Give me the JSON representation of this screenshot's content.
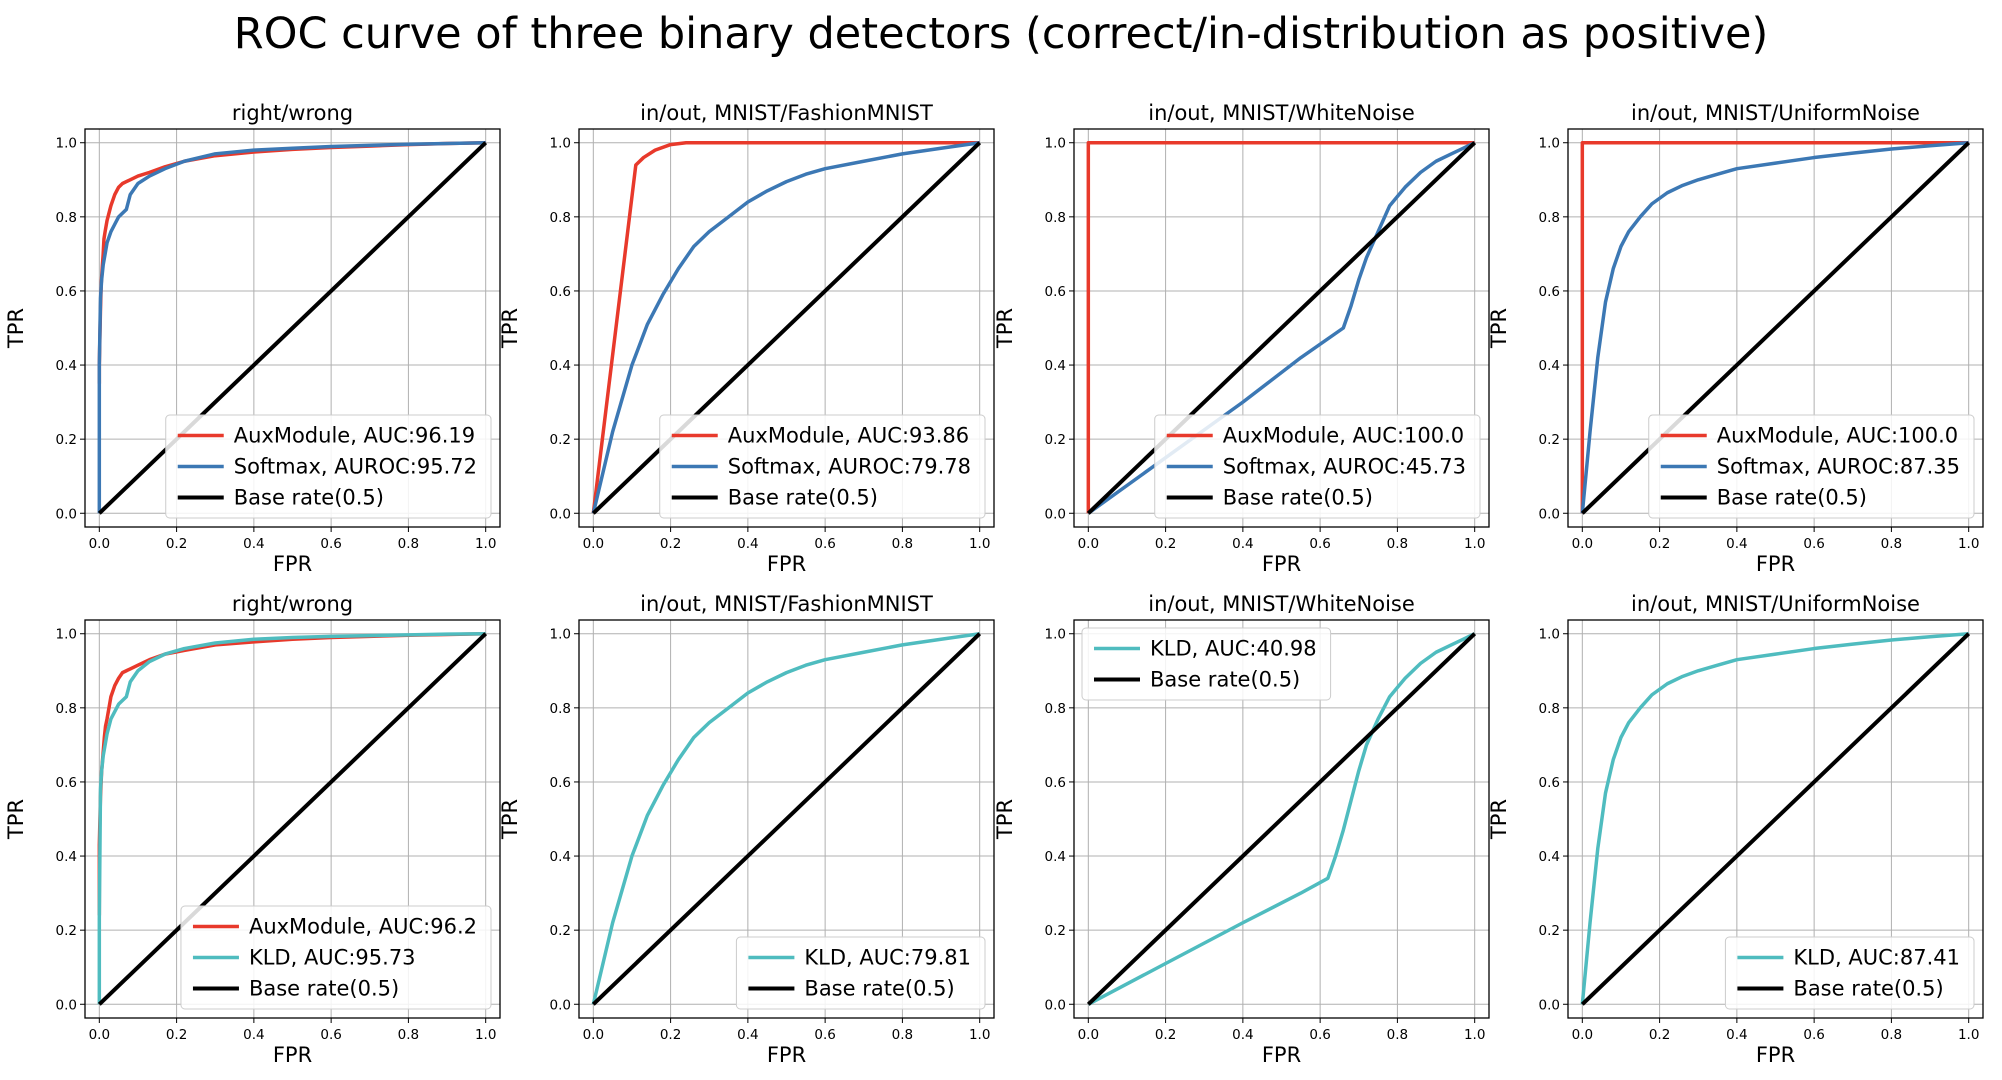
{
  "suptitle": "ROC curve of three binary detectors (correct/in-distribution as positive)",
  "colors": {
    "AuxModule": "#e8392b",
    "Softmax": "#3c78b4",
    "KLD": "#4fbcbf",
    "Base": "#000000",
    "grid": "#b0b0b0"
  },
  "chart_data": [
    {
      "type": "line",
      "title": "right/wrong",
      "xlabel": "FPR",
      "ylabel": "TPR",
      "xlim": [
        0,
        1
      ],
      "ylim": [
        0,
        1
      ],
      "grid": true,
      "legend": "bottom-right",
      "xticks": [
        "0.0",
        "0.2",
        "0.4",
        "0.6",
        "0.8",
        "1.0"
      ],
      "yticks": [
        "0.0",
        "0.2",
        "0.4",
        "0.6",
        "0.8",
        "1.0"
      ],
      "series": [
        {
          "name": "AuxModule, AUC:96.19",
          "color_key": "AuxModule",
          "x": [
            0,
            0,
            0.003,
            0.005,
            0.008,
            0.01,
            0.012,
            0.015,
            0.02,
            0.025,
            0.03,
            0.04,
            0.05,
            0.06,
            0.08,
            0.1,
            0.13,
            0.17,
            0.22,
            0.3,
            0.4,
            0.5,
            0.6,
            0.7,
            0.8,
            0.9,
            1.0
          ],
          "y": [
            0.35,
            0.4,
            0.55,
            0.62,
            0.67,
            0.7,
            0.74,
            0.76,
            0.79,
            0.81,
            0.83,
            0.86,
            0.88,
            0.89,
            0.9,
            0.91,
            0.92,
            0.935,
            0.95,
            0.965,
            0.975,
            0.982,
            0.987,
            0.991,
            0.995,
            0.998,
            1.0
          ]
        },
        {
          "name": "Softmax, AUROC:95.72",
          "color_key": "Softmax",
          "x": [
            0,
            0,
            0.003,
            0.006,
            0.01,
            0.015,
            0.02,
            0.03,
            0.04,
            0.05,
            0.07,
            0.08,
            0.1,
            0.13,
            0.17,
            0.22,
            0.3,
            0.4,
            0.5,
            0.6,
            0.7,
            0.8,
            0.9,
            1.0
          ],
          "y": [
            0,
            0.4,
            0.58,
            0.63,
            0.67,
            0.7,
            0.73,
            0.76,
            0.78,
            0.8,
            0.82,
            0.86,
            0.89,
            0.91,
            0.93,
            0.95,
            0.97,
            0.98,
            0.985,
            0.99,
            0.993,
            0.996,
            0.998,
            1.0
          ]
        },
        {
          "name": "Base rate(0.5)",
          "color_key": "Base",
          "x": [
            0,
            1
          ],
          "y": [
            0,
            1
          ]
        }
      ]
    },
    {
      "type": "line",
      "title": "in/out, MNIST/FashionMNIST",
      "xlabel": "FPR",
      "ylabel": "TPR",
      "xlim": [
        0,
        1
      ],
      "ylim": [
        0,
        1
      ],
      "grid": true,
      "legend": "bottom-right",
      "xticks": [
        "0.0",
        "0.2",
        "0.4",
        "0.6",
        "0.8",
        "1.0"
      ],
      "yticks": [
        "0.0",
        "0.2",
        "0.4",
        "0.6",
        "0.8",
        "1.0"
      ],
      "series": [
        {
          "name": "AuxModule, AUC:93.86",
          "color_key": "AuxModule",
          "x": [
            0,
            0.11,
            0.13,
            0.16,
            0.2,
            0.24,
            0.3,
            1.0
          ],
          "y": [
            0,
            0.94,
            0.96,
            0.98,
            0.995,
            1.0,
            1.0,
            1.0
          ]
        },
        {
          "name": "Softmax, AUROC:79.78",
          "color_key": "Softmax",
          "x": [
            0,
            0.05,
            0.1,
            0.14,
            0.18,
            0.22,
            0.26,
            0.3,
            0.35,
            0.4,
            0.45,
            0.5,
            0.55,
            0.6,
            0.7,
            0.8,
            0.9,
            1.0
          ],
          "y": [
            0,
            0.22,
            0.4,
            0.51,
            0.59,
            0.66,
            0.72,
            0.76,
            0.8,
            0.84,
            0.87,
            0.895,
            0.915,
            0.93,
            0.95,
            0.97,
            0.985,
            1.0
          ]
        },
        {
          "name": "Base rate(0.5)",
          "color_key": "Base",
          "x": [
            0,
            1
          ],
          "y": [
            0,
            1
          ]
        }
      ]
    },
    {
      "type": "line",
      "title": "in/out, MNIST/WhiteNoise",
      "xlabel": "FPR",
      "ylabel": "TPR",
      "xlim": [
        0,
        1
      ],
      "ylim": [
        0,
        1
      ],
      "grid": true,
      "legend": "bottom-right",
      "xticks": [
        "0.0",
        "0.2",
        "0.4",
        "0.6",
        "0.8",
        "1.0"
      ],
      "yticks": [
        "0.0",
        "0.2",
        "0.4",
        "0.6",
        "0.8",
        "1.0"
      ],
      "series": [
        {
          "name": "AuxModule, AUC:100.0",
          "color_key": "AuxModule",
          "x": [
            0,
            0,
            1
          ],
          "y": [
            0,
            1,
            1
          ]
        },
        {
          "name": "Softmax, AUROC:45.73",
          "color_key": "Softmax",
          "x": [
            0,
            0.2,
            0.4,
            0.55,
            0.66,
            0.68,
            0.7,
            0.72,
            0.75,
            0.78,
            0.82,
            0.86,
            0.9,
            0.94,
            0.97,
            1.0
          ],
          "y": [
            0,
            0.15,
            0.3,
            0.42,
            0.5,
            0.56,
            0.63,
            0.69,
            0.76,
            0.83,
            0.88,
            0.92,
            0.95,
            0.97,
            0.985,
            1.0
          ]
        },
        {
          "name": "Softmax, AUROC:45.73",
          "color_key": "Softmax",
          "hidden_duplicate": true,
          "x": [],
          "y": []
        },
        {
          "name": "Base rate(0.5)",
          "color_key": "Base",
          "x": [
            0,
            1
          ],
          "y": [
            0,
            1
          ]
        }
      ]
    },
    {
      "type": "line",
      "title": "in/out, MNIST/UniformNoise",
      "xlabel": "FPR",
      "ylabel": "TPR",
      "xlim": [
        0,
        1
      ],
      "ylim": [
        0,
        1
      ],
      "grid": true,
      "legend": "bottom-right",
      "xticks": [
        "0.0",
        "0.2",
        "0.4",
        "0.6",
        "0.8",
        "1.0"
      ],
      "yticks": [
        "0.0",
        "0.2",
        "0.4",
        "0.6",
        "0.8",
        "1.0"
      ],
      "series": [
        {
          "name": "AuxModule, AUC:100.0",
          "color_key": "AuxModule",
          "x": [
            0,
            0,
            1
          ],
          "y": [
            0,
            1,
            1
          ]
        },
        {
          "name": "Softmax, AUROC:87.35",
          "color_key": "Softmax",
          "x": [
            0,
            0.02,
            0.04,
            0.06,
            0.08,
            0.1,
            0.12,
            0.15,
            0.18,
            0.22,
            0.26,
            0.3,
            0.35,
            0.4,
            0.5,
            0.6,
            0.7,
            0.8,
            0.9,
            1.0
          ],
          "y": [
            0,
            0.22,
            0.42,
            0.57,
            0.66,
            0.72,
            0.76,
            0.8,
            0.835,
            0.865,
            0.885,
            0.9,
            0.915,
            0.93,
            0.945,
            0.96,
            0.972,
            0.983,
            0.992,
            1.0
          ]
        },
        {
          "name": "Base rate(0.5)",
          "color_key": "Base",
          "x": [
            0,
            1
          ],
          "y": [
            0,
            1
          ]
        }
      ]
    },
    {
      "type": "line",
      "title": "right/wrong",
      "xlabel": "FPR",
      "ylabel": "TPR",
      "xlim": [
        0,
        1
      ],
      "ylim": [
        0,
        1
      ],
      "grid": true,
      "legend": "bottom-right",
      "xticks": [
        "0.0",
        "0.2",
        "0.4",
        "0.6",
        "0.8",
        "1.0"
      ],
      "yticks": [
        "0.0",
        "0.2",
        "0.4",
        "0.6",
        "0.8",
        "1.0"
      ],
      "series": [
        {
          "name": "AuxModule, AUC:96.2",
          "color_key": "AuxModule",
          "x": [
            0,
            0,
            0.003,
            0.006,
            0.01,
            0.013,
            0.016,
            0.02,
            0.025,
            0.03,
            0.04,
            0.05,
            0.06,
            0.08,
            0.1,
            0.13,
            0.17,
            0.22,
            0.3,
            0.4,
            0.5,
            0.6,
            0.7,
            0.8,
            0.9,
            1.0
          ],
          "y": [
            0.24,
            0.43,
            0.56,
            0.63,
            0.68,
            0.72,
            0.75,
            0.77,
            0.8,
            0.83,
            0.86,
            0.88,
            0.895,
            0.905,
            0.915,
            0.93,
            0.945,
            0.955,
            0.97,
            0.978,
            0.985,
            0.99,
            0.993,
            0.996,
            0.998,
            1.0
          ]
        },
        {
          "name": "KLD, AUC:95.73",
          "color_key": "KLD",
          "x": [
            0,
            0,
            0.003,
            0.006,
            0.01,
            0.015,
            0.02,
            0.03,
            0.04,
            0.05,
            0.07,
            0.08,
            0.1,
            0.13,
            0.17,
            0.22,
            0.3,
            0.4,
            0.5,
            0.6,
            0.7,
            0.8,
            0.9,
            1.0
          ],
          "y": [
            0,
            0.23,
            0.58,
            0.63,
            0.67,
            0.7,
            0.73,
            0.77,
            0.79,
            0.81,
            0.83,
            0.87,
            0.9,
            0.925,
            0.945,
            0.96,
            0.975,
            0.985,
            0.99,
            0.993,
            0.995,
            0.997,
            0.999,
            1.0
          ]
        },
        {
          "name": "Base rate(0.5)",
          "color_key": "Base",
          "x": [
            0,
            1
          ],
          "y": [
            0,
            1
          ]
        }
      ]
    },
    {
      "type": "line",
      "title": "in/out, MNIST/FashionMNIST",
      "xlabel": "FPR",
      "ylabel": "TPR",
      "xlim": [
        0,
        1
      ],
      "ylim": [
        0,
        1
      ],
      "grid": true,
      "legend": "bottom-right",
      "xticks": [
        "0.0",
        "0.2",
        "0.4",
        "0.6",
        "0.8",
        "1.0"
      ],
      "yticks": [
        "0.0",
        "0.2",
        "0.4",
        "0.6",
        "0.8",
        "1.0"
      ],
      "series": [
        {
          "name": "KLD, AUC:79.81",
          "color_key": "KLD",
          "x": [
            0,
            0.05,
            0.1,
            0.14,
            0.18,
            0.22,
            0.26,
            0.3,
            0.35,
            0.4,
            0.45,
            0.5,
            0.55,
            0.6,
            0.7,
            0.8,
            0.9,
            1.0
          ],
          "y": [
            0,
            0.22,
            0.4,
            0.51,
            0.59,
            0.66,
            0.72,
            0.76,
            0.8,
            0.84,
            0.87,
            0.895,
            0.915,
            0.93,
            0.95,
            0.97,
            0.985,
            1.0
          ]
        },
        {
          "name": "Base rate(0.5)",
          "color_key": "Base",
          "x": [
            0,
            1
          ],
          "y": [
            0,
            1
          ]
        }
      ]
    },
    {
      "type": "line",
      "title": "in/out, MNIST/WhiteNoise",
      "xlabel": "FPR",
      "ylabel": "TPR",
      "xlim": [
        0,
        1
      ],
      "ylim": [
        0,
        1
      ],
      "grid": true,
      "legend": "top-left",
      "xticks": [
        "0.0",
        "0.2",
        "0.4",
        "0.6",
        "0.8",
        "1.0"
      ],
      "yticks": [
        "0.0",
        "0.2",
        "0.4",
        "0.6",
        "0.8",
        "1.0"
      ],
      "series": [
        {
          "name": "KLD, AUC:40.98",
          "color_key": "KLD",
          "x": [
            0,
            0.2,
            0.4,
            0.55,
            0.62,
            0.64,
            0.66,
            0.68,
            0.7,
            0.72,
            0.75,
            0.78,
            0.82,
            0.86,
            0.9,
            0.94,
            0.97,
            1.0
          ],
          "y": [
            0,
            0.11,
            0.22,
            0.3,
            0.34,
            0.4,
            0.47,
            0.55,
            0.63,
            0.7,
            0.77,
            0.83,
            0.88,
            0.92,
            0.95,
            0.97,
            0.985,
            1.0
          ]
        },
        {
          "name": "Base rate(0.5)",
          "color_key": "Base",
          "x": [
            0,
            1
          ],
          "y": [
            0,
            1
          ]
        }
      ]
    },
    {
      "type": "line",
      "title": "in/out, MNIST/UniformNoise",
      "xlabel": "FPR",
      "ylabel": "TPR",
      "xlim": [
        0,
        1
      ],
      "ylim": [
        0,
        1
      ],
      "grid": true,
      "legend": "bottom-right",
      "xticks": [
        "0.0",
        "0.2",
        "0.4",
        "0.6",
        "0.8",
        "1.0"
      ],
      "yticks": [
        "0.0",
        "0.2",
        "0.4",
        "0.6",
        "0.8",
        "1.0"
      ],
      "series": [
        {
          "name": "KLD, AUC:87.41",
          "color_key": "KLD",
          "x": [
            0,
            0.02,
            0.04,
            0.06,
            0.08,
            0.1,
            0.12,
            0.15,
            0.18,
            0.22,
            0.26,
            0.3,
            0.35,
            0.4,
            0.5,
            0.6,
            0.7,
            0.8,
            0.9,
            1.0
          ],
          "y": [
            0,
            0.22,
            0.42,
            0.57,
            0.66,
            0.72,
            0.76,
            0.8,
            0.835,
            0.865,
            0.885,
            0.9,
            0.915,
            0.93,
            0.945,
            0.96,
            0.972,
            0.983,
            0.992,
            1.0
          ]
        },
        {
          "name": "Base rate(0.5)",
          "color_key": "Base",
          "x": [
            0,
            1
          ],
          "y": [
            0,
            1
          ]
        }
      ]
    }
  ]
}
